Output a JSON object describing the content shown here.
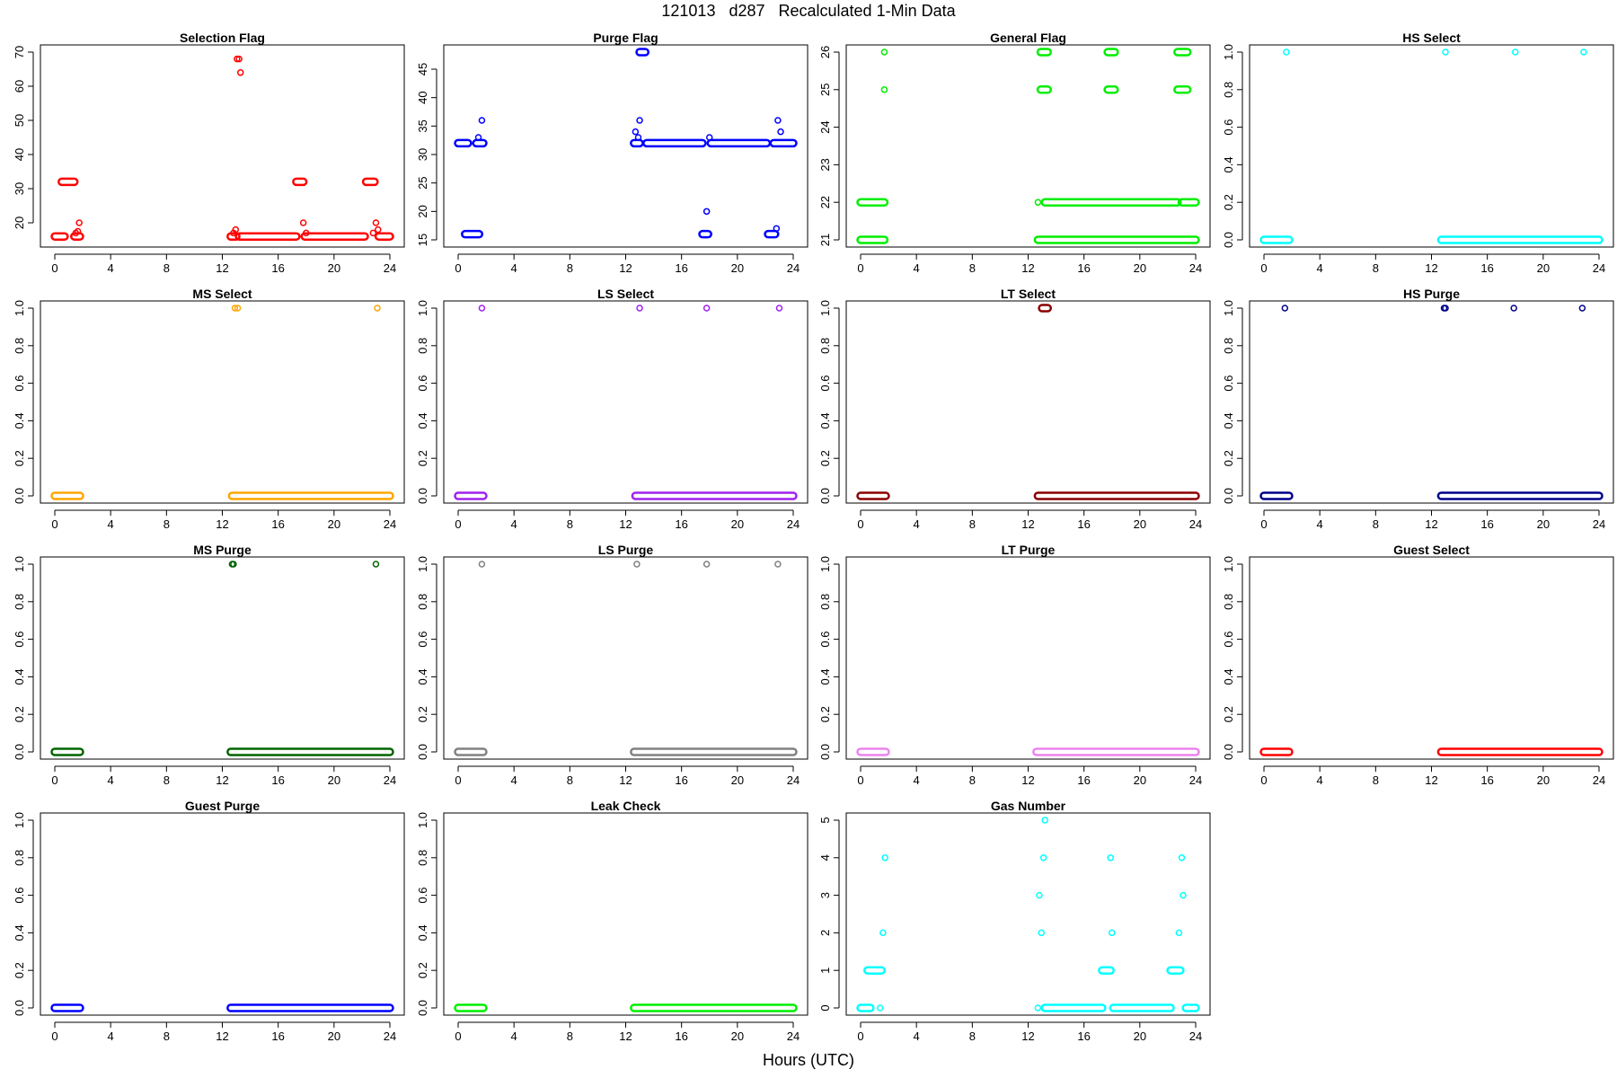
{
  "title": "121013   d287   Recalculated 1-Min Data",
  "xlabel": "Hours (UTC)",
  "chart_data": [
    {
      "type": "scatter",
      "title": "Selection Flag",
      "color": "#ff0000",
      "xticks": [
        0,
        4,
        8,
        12,
        16,
        20,
        24
      ],
      "yticks": [
        20,
        30,
        40,
        50,
        60,
        70
      ],
      "ylim": [
        15,
        70
      ],
      "segments": [
        [
          0,
          0.7,
          16
        ],
        [
          0.5,
          1.4,
          32
        ],
        [
          1.4,
          1.8,
          16
        ],
        [
          12.6,
          13,
          16
        ],
        [
          13.2,
          17.3,
          16
        ],
        [
          17.3,
          17.8,
          32
        ],
        [
          17.9,
          22.2,
          16
        ],
        [
          22.3,
          22.9,
          32
        ],
        [
          23.2,
          24,
          16
        ]
      ],
      "points": [
        [
          1.5,
          17
        ],
        [
          1.65,
          17.5
        ],
        [
          1.75,
          20
        ],
        [
          12.8,
          17
        ],
        [
          12.95,
          18
        ],
        [
          13.05,
          68
        ],
        [
          13.2,
          68
        ],
        [
          13.3,
          64
        ],
        [
          17.8,
          20
        ],
        [
          18,
          17
        ],
        [
          22.8,
          17
        ],
        [
          23.0,
          20
        ],
        [
          23.15,
          18
        ]
      ]
    },
    {
      "type": "scatter",
      "title": "Purge Flag",
      "color": "#0000ff",
      "xticks": [
        0,
        4,
        8,
        12,
        16,
        20,
        24
      ],
      "yticks": [
        15,
        20,
        25,
        30,
        35,
        40,
        45
      ],
      "ylim": [
        15,
        48
      ],
      "segments": [
        [
          0,
          0.7,
          32
        ],
        [
          0.5,
          1.5,
          16
        ],
        [
          1.3,
          1.8,
          32
        ],
        [
          12.6,
          13.0,
          32
        ],
        [
          13.0,
          13.4,
          48
        ],
        [
          13.5,
          17.5,
          32
        ],
        [
          17.5,
          17.9,
          16
        ],
        [
          18.1,
          22.1,
          32
        ],
        [
          22.2,
          22.7,
          16
        ],
        [
          22.6,
          24,
          32
        ]
      ],
      "points": [
        [
          1.45,
          33
        ],
        [
          1.7,
          36
        ],
        [
          12.7,
          34
        ],
        [
          12.9,
          33
        ],
        [
          13.0,
          36
        ],
        [
          17.8,
          20
        ],
        [
          18,
          33
        ],
        [
          22.8,
          17
        ],
        [
          22.9,
          36
        ],
        [
          23.1,
          34
        ]
      ]
    },
    {
      "type": "scatter",
      "title": "General Flag",
      "color": "#00ee00",
      "xticks": [
        0,
        4,
        8,
        12,
        16,
        20,
        24
      ],
      "yticks": [
        21,
        22,
        23,
        24,
        25,
        26
      ],
      "ylim": [
        21,
        26
      ],
      "segments": [
        [
          0,
          1.7,
          21
        ],
        [
          0,
          1.7,
          22
        ],
        [
          12.7,
          24,
          21
        ],
        [
          13.2,
          22.7,
          22
        ],
        [
          23.0,
          24,
          22
        ],
        [
          12.9,
          13.4,
          25
        ],
        [
          12.9,
          13.4,
          26
        ],
        [
          17.7,
          18.2,
          25
        ],
        [
          17.7,
          18.2,
          26
        ],
        [
          22.7,
          23.4,
          25
        ],
        [
          22.7,
          23.4,
          26
        ]
      ],
      "points": [
        [
          1.7,
          25
        ],
        [
          1.7,
          26
        ],
        [
          12.7,
          22
        ]
      ]
    },
    {
      "type": "scatter",
      "title": "HS Select",
      "color": "#00ffff",
      "xticks": [
        0,
        4,
        8,
        12,
        16,
        20,
        24
      ],
      "yticks": [
        "0.0",
        "0.2",
        "0.4",
        "0.6",
        "0.8",
        "1.0"
      ],
      "ylim": [
        0,
        1
      ],
      "segments": [
        [
          0,
          1.8,
          0
        ],
        [
          12.7,
          24,
          0
        ]
      ],
      "points": [
        [
          1.6,
          1
        ],
        [
          13.0,
          1
        ],
        [
          18.0,
          1
        ],
        [
          22.9,
          1
        ]
      ]
    },
    {
      "type": "scatter",
      "title": "MS Select",
      "color": "#ffa500",
      "xticks": [
        0,
        4,
        8,
        12,
        16,
        20,
        24
      ],
      "yticks": [
        "0.0",
        "0.2",
        "0.4",
        "0.6",
        "0.8",
        "1.0"
      ],
      "ylim": [
        0,
        1
      ],
      "segments": [
        [
          0,
          1.8,
          0
        ],
        [
          12.7,
          24,
          0
        ]
      ],
      "points": [
        [
          12.9,
          1
        ],
        [
          13.1,
          1
        ],
        [
          23.1,
          1
        ]
      ]
    },
    {
      "type": "scatter",
      "title": "LS Select",
      "color": "#a020f0",
      "xticks": [
        0,
        4,
        8,
        12,
        16,
        20,
        24
      ],
      "yticks": [
        "0.0",
        "0.2",
        "0.4",
        "0.6",
        "0.8",
        "1.0"
      ],
      "ylim": [
        0,
        1
      ],
      "segments": [
        [
          0,
          1.8,
          0
        ],
        [
          12.7,
          24,
          0
        ]
      ],
      "points": [
        [
          1.7,
          1
        ],
        [
          13.0,
          1
        ],
        [
          17.8,
          1
        ],
        [
          23.0,
          1
        ]
      ]
    },
    {
      "type": "scatter",
      "title": "LT Select",
      "color": "#8b0000",
      "xticks": [
        0,
        4,
        8,
        12,
        16,
        20,
        24
      ],
      "yticks": [
        "0.0",
        "0.2",
        "0.4",
        "0.6",
        "0.8",
        "1.0"
      ],
      "ylim": [
        0,
        1
      ],
      "segments": [
        [
          0,
          1.8,
          0
        ],
        [
          12.7,
          24,
          0
        ],
        [
          13.0,
          13.4,
          1
        ]
      ],
      "points": []
    },
    {
      "type": "scatter",
      "title": "HS Purge",
      "color": "#00008b",
      "xticks": [
        0,
        4,
        8,
        12,
        16,
        20,
        24
      ],
      "yticks": [
        "0.0",
        "0.2",
        "0.4",
        "0.6",
        "0.8",
        "1.0"
      ],
      "ylim": [
        0,
        1
      ],
      "segments": [
        [
          0,
          1.8,
          0
        ],
        [
          12.7,
          24,
          0
        ]
      ],
      "points": [
        [
          1.5,
          1
        ],
        [
          12.9,
          1
        ],
        [
          13.0,
          1
        ],
        [
          17.9,
          1
        ],
        [
          22.8,
          1
        ]
      ]
    },
    {
      "type": "scatter",
      "title": "MS Purge",
      "color": "#006400",
      "xticks": [
        0,
        4,
        8,
        12,
        16,
        20,
        24
      ],
      "yticks": [
        "0.0",
        "0.2",
        "0.4",
        "0.6",
        "0.8",
        "1.0"
      ],
      "ylim": [
        0,
        1
      ],
      "segments": [
        [
          0,
          1.8,
          0
        ],
        [
          12.6,
          24,
          0
        ]
      ],
      "points": [
        [
          12.7,
          1
        ],
        [
          12.8,
          1
        ],
        [
          23.0,
          1
        ]
      ]
    },
    {
      "type": "scatter",
      "title": "LS Purge",
      "color": "#808080",
      "xticks": [
        0,
        4,
        8,
        12,
        16,
        20,
        24
      ],
      "yticks": [
        "0.0",
        "0.2",
        "0.4",
        "0.6",
        "0.8",
        "1.0"
      ],
      "ylim": [
        0,
        1
      ],
      "segments": [
        [
          0,
          1.8,
          0
        ],
        [
          12.6,
          24,
          0
        ]
      ],
      "points": [
        [
          1.7,
          1
        ],
        [
          12.8,
          1
        ],
        [
          17.8,
          1
        ],
        [
          22.9,
          1
        ]
      ]
    },
    {
      "type": "scatter",
      "title": "LT Purge",
      "color": "#ee82ee",
      "xticks": [
        0,
        4,
        8,
        12,
        16,
        20,
        24
      ],
      "yticks": [
        "0.0",
        "0.2",
        "0.4",
        "0.6",
        "0.8",
        "1.0"
      ],
      "ylim": [
        0,
        1
      ],
      "segments": [
        [
          0,
          1.8,
          0
        ],
        [
          12.6,
          24,
          0
        ]
      ],
      "points": []
    },
    {
      "type": "scatter",
      "title": "Guest Select",
      "color": "#ff0000",
      "xticks": [
        0,
        4,
        8,
        12,
        16,
        20,
        24
      ],
      "yticks": [
        "0.0",
        "0.2",
        "0.4",
        "0.6",
        "0.8",
        "1.0"
      ],
      "ylim": [
        0,
        1
      ],
      "segments": [
        [
          0,
          1.8,
          0
        ],
        [
          12.7,
          24,
          0
        ]
      ],
      "points": []
    },
    {
      "type": "scatter",
      "title": "Guest Purge",
      "color": "#0000ff",
      "xticks": [
        0,
        4,
        8,
        12,
        16,
        20,
        24
      ],
      "yticks": [
        "0.0",
        "0.2",
        "0.4",
        "0.6",
        "0.8",
        "1.0"
      ],
      "ylim": [
        0,
        1
      ],
      "segments": [
        [
          0,
          1.8,
          0
        ],
        [
          12.6,
          24,
          0
        ]
      ],
      "points": []
    },
    {
      "type": "scatter",
      "title": "Leak Check",
      "color": "#00ee00",
      "xticks": [
        0,
        4,
        8,
        12,
        16,
        20,
        24
      ],
      "yticks": [
        "0.0",
        "0.2",
        "0.4",
        "0.6",
        "0.8",
        "1.0"
      ],
      "ylim": [
        0,
        1
      ],
      "segments": [
        [
          0,
          1.8,
          0
        ],
        [
          12.6,
          24,
          0
        ]
      ],
      "points": []
    },
    {
      "type": "scatter",
      "title": "Gas Number",
      "color": "#00ffff",
      "xticks": [
        0,
        4,
        8,
        12,
        16,
        20,
        24
      ],
      "yticks": [
        0,
        1,
        2,
        3,
        4,
        5
      ],
      "ylim": [
        0,
        5
      ],
      "segments": [
        [
          0,
          0.7,
          0
        ],
        [
          0.5,
          1.5,
          1
        ],
        [
          13.2,
          17.3,
          0
        ],
        [
          17.3,
          17.9,
          1
        ],
        [
          18.1,
          22.2,
          0
        ],
        [
          22.2,
          22.9,
          1
        ],
        [
          23.3,
          24,
          0
        ]
      ],
      "points": [
        [
          1.4,
          0
        ],
        [
          1.6,
          2
        ],
        [
          1.75,
          4
        ],
        [
          12.7,
          0
        ],
        [
          12.8,
          3
        ],
        [
          12.95,
          2
        ],
        [
          13.1,
          4
        ],
        [
          13.2,
          5
        ],
        [
          17.9,
          4
        ],
        [
          18.0,
          2
        ],
        [
          22.8,
          2
        ],
        [
          23.0,
          4
        ],
        [
          23.1,
          3
        ]
      ]
    }
  ]
}
